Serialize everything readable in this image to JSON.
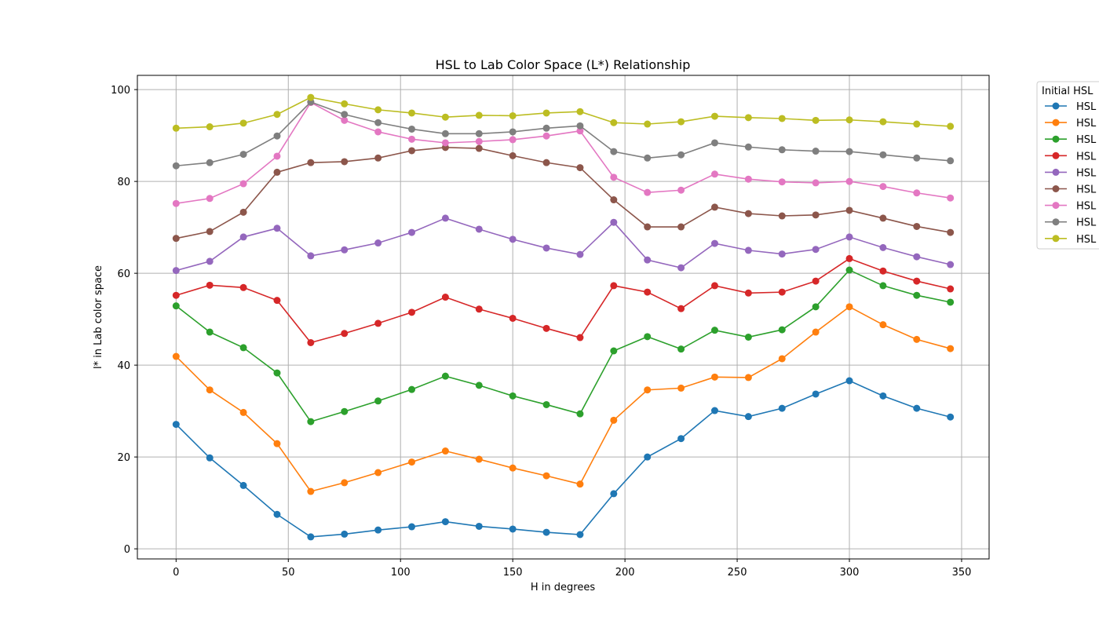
{
  "chart_data": {
    "type": "line",
    "title": "HSL to Lab Color Space (L*) Relationship",
    "xlabel": "H in degrees",
    "ylabel": "l* in Lab color space",
    "xlim": [
      -17.25,
      362.25
    ],
    "ylim": [
      -2.2,
      103.1
    ],
    "xticks": [
      0,
      50,
      100,
      150,
      200,
      250,
      300,
      350
    ],
    "yticks": [
      0,
      20,
      40,
      60,
      80,
      100
    ],
    "grid": true,
    "legend": {
      "title": "Initial HSL",
      "placement": "outside-top-right"
    },
    "x": [
      0,
      15,
      30,
      45,
      60,
      75,
      90,
      105,
      120,
      135,
      150,
      165,
      180,
      195,
      210,
      225,
      240,
      255,
      270,
      285,
      300,
      315,
      330,
      345
    ],
    "series": [
      {
        "name": "HSL",
        "color": "#1f77b4",
        "values": [
          27.1,
          19.8,
          13.8,
          7.5,
          2.6,
          3.2,
          4.1,
          4.8,
          5.9,
          4.9,
          4.3,
          3.6,
          3.1,
          12.0,
          20.0,
          24.0,
          30.1,
          28.8,
          30.6,
          33.7,
          36.6,
          33.3,
          30.6,
          28.7
        ]
      },
      {
        "name": "HSL",
        "color": "#ff7f0e",
        "values": [
          41.9,
          34.6,
          29.7,
          22.9,
          12.5,
          14.4,
          16.6,
          18.9,
          21.3,
          19.5,
          17.6,
          15.9,
          14.1,
          28.0,
          34.6,
          35.0,
          37.4,
          37.3,
          41.4,
          47.2,
          52.7,
          48.8,
          45.6,
          43.6
        ]
      },
      {
        "name": "HSL",
        "color": "#2ca02c",
        "values": [
          52.9,
          47.2,
          43.8,
          38.3,
          27.7,
          29.9,
          32.2,
          34.7,
          37.6,
          35.6,
          33.3,
          31.4,
          29.4,
          43.1,
          46.2,
          43.5,
          47.6,
          46.1,
          47.7,
          52.7,
          60.7,
          57.3,
          55.2,
          53.7
        ]
      },
      {
        "name": "HSL",
        "color": "#d62728",
        "values": [
          55.2,
          57.4,
          56.9,
          54.1,
          44.9,
          46.9,
          49.1,
          51.5,
          54.8,
          52.2,
          50.2,
          48.0,
          46.0,
          57.3,
          55.9,
          52.3,
          57.3,
          55.7,
          55.9,
          58.3,
          63.2,
          60.5,
          58.3,
          56.6
        ]
      },
      {
        "name": "HSL",
        "color": "#9467bd",
        "values": [
          60.6,
          62.6,
          67.9,
          69.8,
          63.8,
          65.1,
          66.6,
          68.9,
          72.0,
          69.6,
          67.4,
          65.5,
          64.1,
          71.1,
          62.9,
          61.2,
          66.5,
          65.0,
          64.2,
          65.2,
          67.9,
          65.6,
          63.6,
          61.9
        ]
      },
      {
        "name": "HSL",
        "color": "#8c564b",
        "values": [
          67.6,
          69.1,
          73.3,
          82.0,
          84.1,
          84.3,
          85.1,
          86.7,
          87.4,
          87.2,
          85.6,
          84.1,
          83.0,
          76.0,
          70.1,
          70.1,
          74.4,
          73.0,
          72.5,
          72.7,
          73.7,
          72.0,
          70.2,
          68.9
        ]
      },
      {
        "name": "HSL",
        "color": "#e377c2",
        "values": [
          75.2,
          76.3,
          79.5,
          85.5,
          97.2,
          93.3,
          90.8,
          89.2,
          88.4,
          88.7,
          89.1,
          89.9,
          91.0,
          80.9,
          77.6,
          78.1,
          81.6,
          80.5,
          79.9,
          79.7,
          80.0,
          78.9,
          77.5,
          76.4
        ]
      },
      {
        "name": "HSL",
        "color": "#7f7f7f",
        "values": [
          83.4,
          84.1,
          85.9,
          89.9,
          97.3,
          94.6,
          92.8,
          91.4,
          90.4,
          90.4,
          90.8,
          91.6,
          92.1,
          86.5,
          85.1,
          85.8,
          88.4,
          87.5,
          86.9,
          86.6,
          86.5,
          85.8,
          85.1,
          84.5
        ]
      },
      {
        "name": "HSL",
        "color": "#bcbd22",
        "values": [
          91.6,
          91.9,
          92.7,
          94.6,
          98.3,
          96.9,
          95.6,
          94.9,
          94.0,
          94.4,
          94.3,
          94.9,
          95.2,
          92.8,
          92.5,
          93.0,
          94.2,
          93.9,
          93.7,
          93.3,
          93.4,
          93.0,
          92.5,
          92.0
        ]
      }
    ]
  }
}
